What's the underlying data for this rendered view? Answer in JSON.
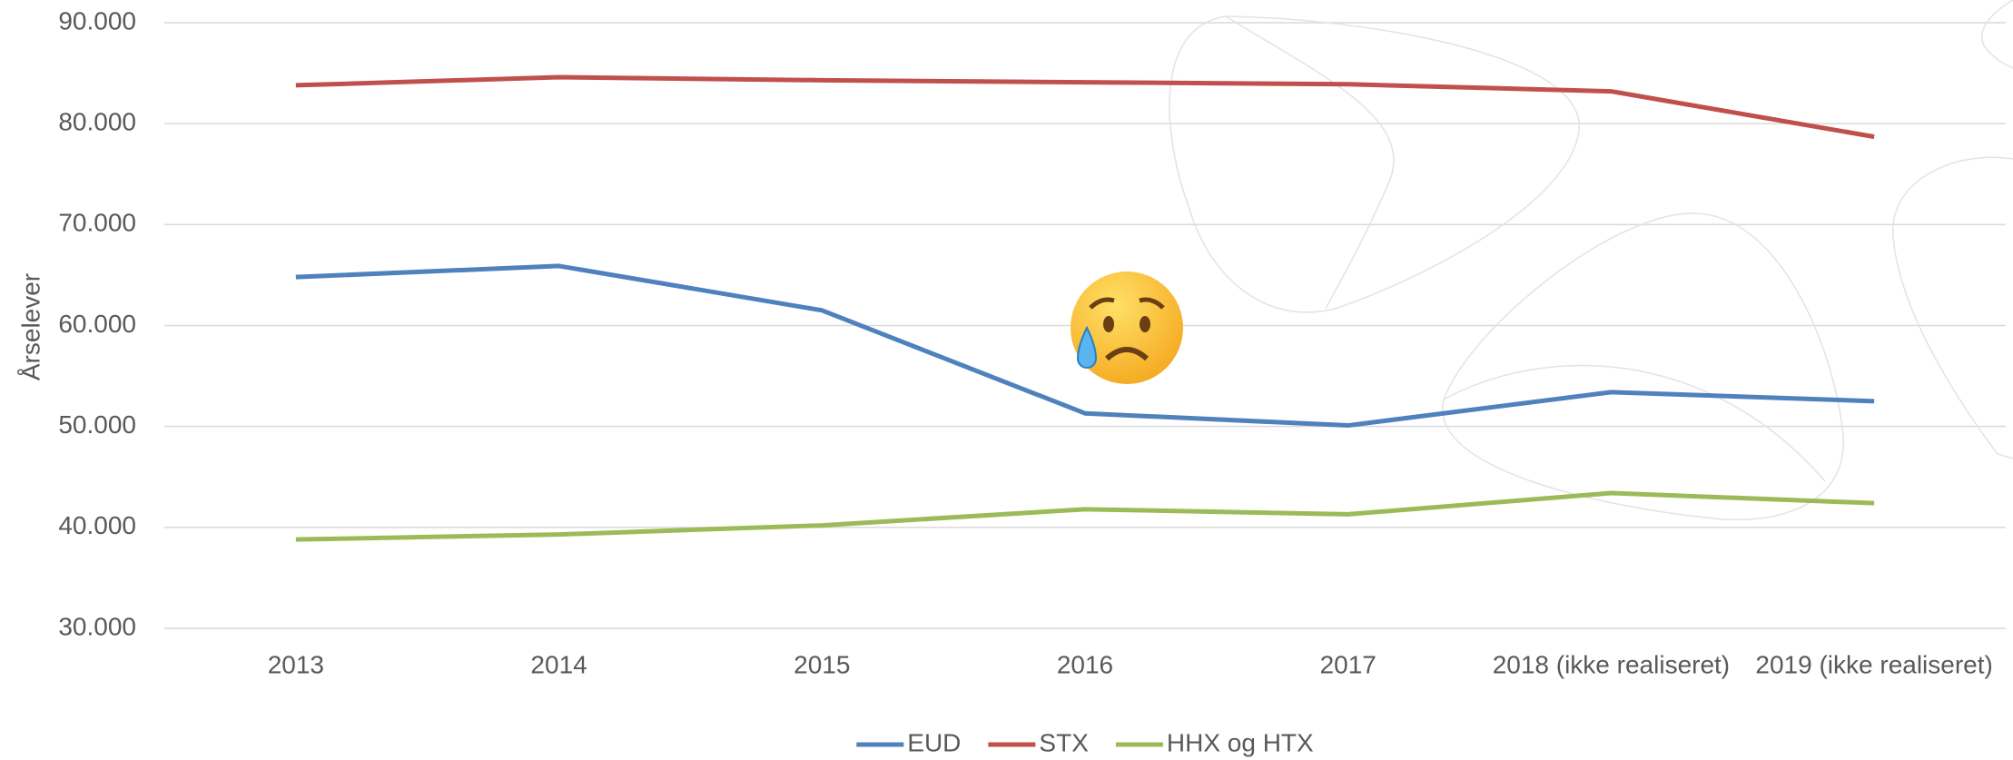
{
  "chart_data": {
    "type": "line",
    "y_label": "Årselever",
    "categories": [
      "2013",
      "2014",
      "2015",
      "2016",
      "2017",
      "2018 (ikke realiseret)",
      "2019 (ikke realiseret)"
    ],
    "series": [
      {
        "name": "EUD",
        "color": "#4f81bd",
        "values": [
          64800,
          65900,
          61500,
          51300,
          50100,
          53400,
          52500
        ]
      },
      {
        "name": "STX",
        "color": "#c0504d",
        "values": [
          83800,
          84600,
          84300,
          84100,
          83900,
          83200,
          78700
        ]
      },
      {
        "name": "HHX og HTX",
        "color": "#9bbb59",
        "values": [
          38800,
          39300,
          40200,
          41800,
          41300,
          43400,
          42400
        ]
      }
    ],
    "ylim": [
      30000,
      90000
    ],
    "yticks": [
      {
        "value": 30000,
        "label": "30.000"
      },
      {
        "value": 40000,
        "label": "40.000"
      },
      {
        "value": 50000,
        "label": "50.000"
      },
      {
        "value": 60000,
        "label": "60.000"
      },
      {
        "value": 70000,
        "label": "70.000"
      },
      {
        "value": 80000,
        "label": "80.000"
      },
      {
        "value": 90000,
        "label": "90.000"
      }
    ],
    "grid": true,
    "legend": "bottom"
  }
}
